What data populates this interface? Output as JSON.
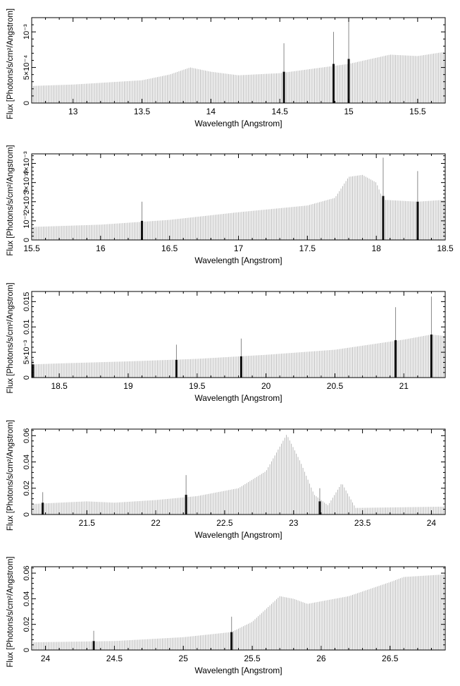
{
  "chart_data": [
    {
      "type": "bar",
      "xlabel": "Wavelength [Angstrom]",
      "ylabel": "Flux [Photons/s/cm²/Angstrom]",
      "xlim": [
        12.7,
        15.7
      ],
      "ylim": [
        0,
        0.0012
      ],
      "xticks": [
        "13",
        "13.5",
        "14",
        "14.5",
        "15",
        "15.5"
      ],
      "yticks": [
        "0",
        "5×10⁻⁴",
        "10⁻³"
      ],
      "continuum": [
        [
          12.7,
          0.00024
        ],
        [
          13.0,
          0.00026
        ],
        [
          13.5,
          0.00032
        ],
        [
          13.7,
          0.0004
        ],
        [
          13.85,
          0.0005
        ],
        [
          14.0,
          0.00044
        ],
        [
          14.2,
          0.00039
        ],
        [
          14.5,
          0.00042
        ],
        [
          15.0,
          0.00055
        ],
        [
          15.3,
          0.00068
        ],
        [
          15.5,
          0.00066
        ],
        [
          15.7,
          0.00072
        ]
      ],
      "lines": [
        {
          "wavelength": 14.53,
          "flux": 0.00044,
          "error": 0.0004
        },
        {
          "wavelength": 14.89,
          "flux": 0.00055,
          "error": 0.00045
        },
        {
          "wavelength": 15.0,
          "flux": 0.00062,
          "error": 0.00055
        }
      ]
    },
    {
      "type": "bar",
      "xlabel": "Wavelength [Angstrom]",
      "ylabel": "Flux [Photons/s/cm²/Angstrom]",
      "xlim": [
        15.5,
        18.5
      ],
      "ylim": [
        0,
        0.0045
      ],
      "xticks": [
        "15.5",
        "16",
        "16.5",
        "17",
        "17.5",
        "18",
        "18.5"
      ],
      "yticks": [
        "0",
        "10⁻³",
        "2×10⁻³",
        "3×10⁻³",
        "4×10⁻³"
      ],
      "continuum": [
        [
          15.5,
          0.00068
        ],
        [
          16.0,
          0.0008
        ],
        [
          16.5,
          0.00105
        ],
        [
          17.0,
          0.00145
        ],
        [
          17.5,
          0.0018
        ],
        [
          17.7,
          0.0022
        ],
        [
          17.8,
          0.0033
        ],
        [
          17.9,
          0.0034
        ],
        [
          18.0,
          0.003
        ],
        [
          18.05,
          0.0021
        ],
        [
          18.3,
          0.002
        ],
        [
          18.5,
          0.0021
        ]
      ],
      "lines": [
        {
          "wavelength": 16.3,
          "flux": 0.001,
          "error": 0.001
        },
        {
          "wavelength": 18.05,
          "flux": 0.0023,
          "error": 0.002
        },
        {
          "wavelength": 18.3,
          "flux": 0.002,
          "error": 0.0016
        }
      ]
    },
    {
      "type": "bar",
      "xlabel": "Wavelength [Angstrom]",
      "ylabel": "Flux [Photons/s/cm²/Angstrom]",
      "xlim": [
        18.3,
        21.3
      ],
      "ylim": [
        0,
        0.017
      ],
      "xticks": [
        "18.5",
        "19",
        "19.5",
        "20",
        "20.5",
        "21"
      ],
      "yticks": [
        "0",
        "5×10⁻³",
        "0.01",
        "0.015"
      ],
      "continuum": [
        [
          18.3,
          0.0026
        ],
        [
          18.5,
          0.0028
        ],
        [
          19.0,
          0.0032
        ],
        [
          19.5,
          0.0037
        ],
        [
          20.0,
          0.0045
        ],
        [
          20.5,
          0.0055
        ],
        [
          21.0,
          0.0075
        ],
        [
          21.2,
          0.0085
        ],
        [
          21.3,
          0.0082
        ]
      ],
      "lines": [
        {
          "wavelength": 18.31,
          "flux": 0.0026,
          "error": 0.001
        },
        {
          "wavelength": 19.35,
          "flux": 0.0035,
          "error": 0.003
        },
        {
          "wavelength": 19.82,
          "flux": 0.0042,
          "error": 0.0035
        },
        {
          "wavelength": 20.94,
          "flux": 0.0074,
          "error": 0.0065
        },
        {
          "wavelength": 21.2,
          "flux": 0.0085,
          "error": 0.0075
        }
      ]
    },
    {
      "type": "bar",
      "xlabel": "Wavelength [Angstrom]",
      "ylabel": "Flux [Photons/s/cm²/Angstrom]",
      "xlim": [
        21.1,
        24.1
      ],
      "ylim": [
        0,
        0.065
      ],
      "xticks": [
        "21.5",
        "22",
        "22.5",
        "23",
        "23.5",
        "24"
      ],
      "yticks": [
        "0",
        "0.02",
        "0.04",
        "0.06"
      ],
      "continuum": [
        [
          21.1,
          0.008
        ],
        [
          21.5,
          0.01
        ],
        [
          21.7,
          0.009
        ],
        [
          22.0,
          0.011
        ],
        [
          22.3,
          0.014
        ],
        [
          22.6,
          0.02
        ],
        [
          22.8,
          0.033
        ],
        [
          22.95,
          0.061
        ],
        [
          23.05,
          0.04
        ],
        [
          23.15,
          0.015
        ],
        [
          23.25,
          0.007
        ],
        [
          23.35,
          0.024
        ],
        [
          23.45,
          0.005
        ],
        [
          24.1,
          0.006
        ]
      ],
      "lines": [
        {
          "wavelength": 21.18,
          "flux": 0.009,
          "error": 0.008
        },
        {
          "wavelength": 22.22,
          "flux": 0.015,
          "error": 0.015
        },
        {
          "wavelength": 23.19,
          "flux": 0.01,
          "error": 0.01
        }
      ]
    },
    {
      "type": "bar",
      "xlabel": "Wavelength [Angstrom]",
      "ylabel": "Flux [Photons/s/cm²/Angstrom]",
      "xlim": [
        23.9,
        26.9
      ],
      "ylim": [
        0,
        0.065
      ],
      "xticks": [
        "24",
        "24.5",
        "25",
        "25.5",
        "26",
        "26.5"
      ],
      "yticks": [
        "0",
        "0.02",
        "0.04",
        "0.06"
      ],
      "continuum": [
        [
          23.9,
          0.006
        ],
        [
          24.5,
          0.007
        ],
        [
          25.0,
          0.01
        ],
        [
          25.35,
          0.014
        ],
        [
          25.5,
          0.022
        ],
        [
          25.7,
          0.042
        ],
        [
          25.8,
          0.04
        ],
        [
          25.9,
          0.036
        ],
        [
          26.2,
          0.042
        ],
        [
          26.5,
          0.053
        ],
        [
          26.6,
          0.057
        ],
        [
          26.9,
          0.059
        ]
      ],
      "lines": [
        {
          "wavelength": 24.35,
          "flux": 0.007,
          "error": 0.008
        },
        {
          "wavelength": 25.35,
          "flux": 0.014,
          "error": 0.012
        }
      ]
    }
  ]
}
